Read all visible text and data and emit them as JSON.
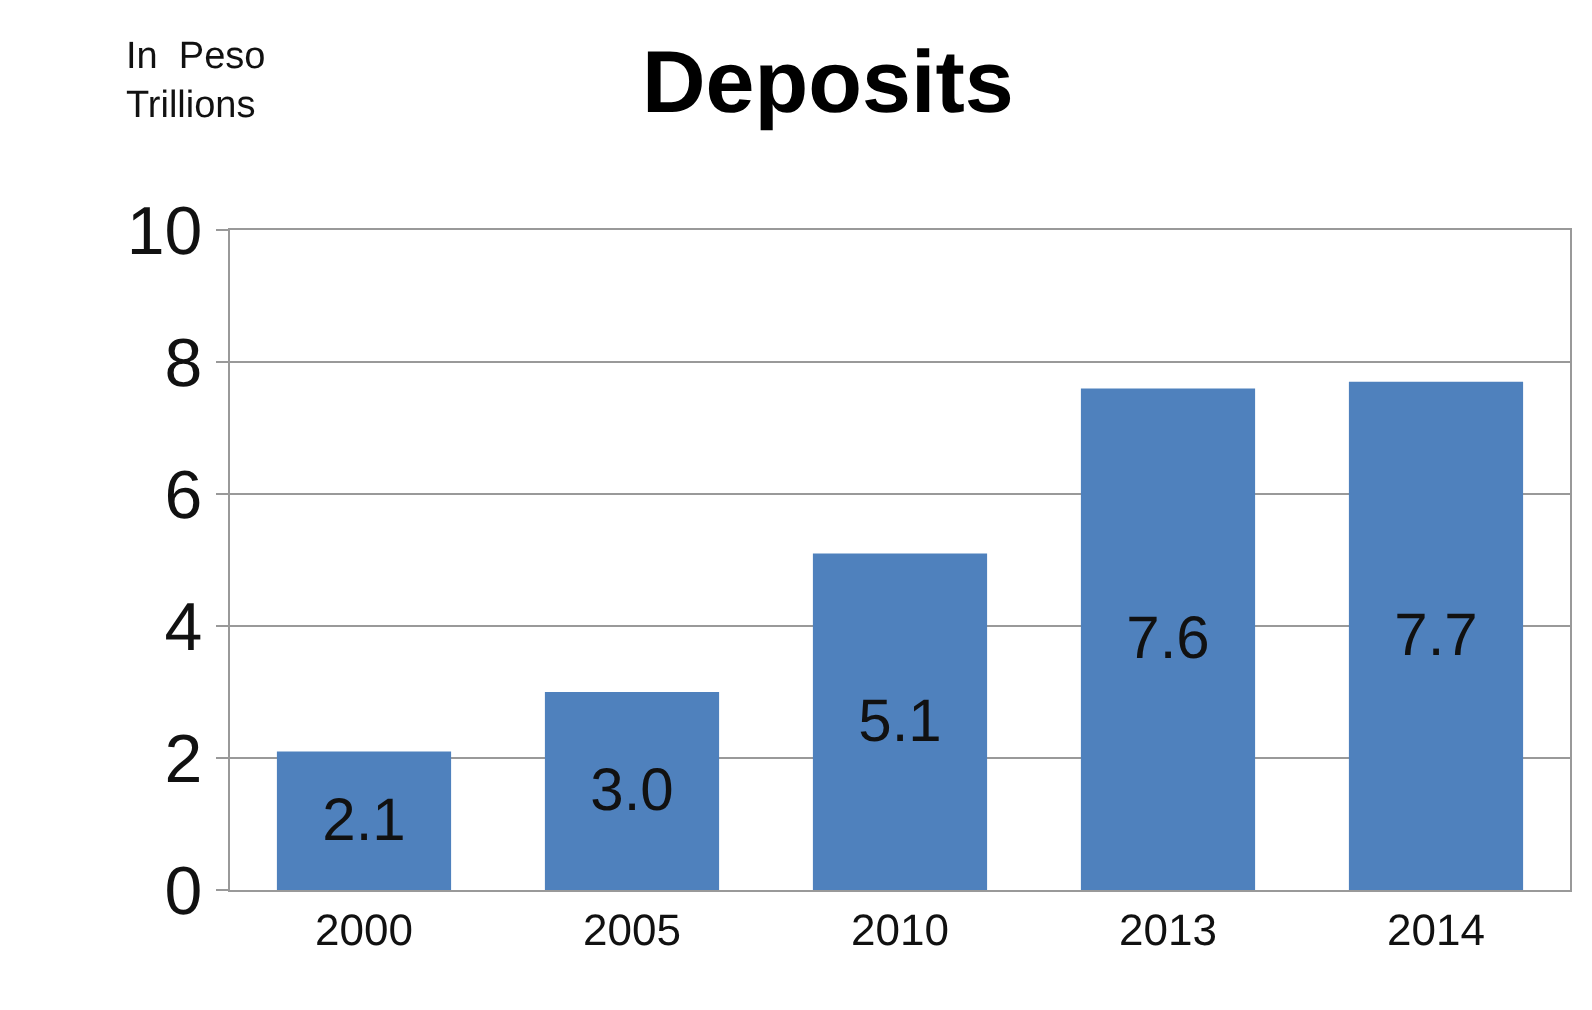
{
  "chart_data": {
    "type": "bar",
    "title": "Deposits",
    "ylabel": "In  Peso\nTrillions",
    "categories": [
      "2000",
      "2005",
      "2010",
      "2013",
      "2014"
    ],
    "values": [
      2.1,
      3.0,
      5.1,
      7.6,
      7.7
    ],
    "value_labels": [
      "2.1",
      "3.0",
      "5.1",
      "7.6",
      "7.7"
    ],
    "color": "#4f81bd",
    "ylim": [
      0,
      10
    ],
    "yticks": [
      0,
      2,
      4,
      6,
      8,
      10
    ],
    "grid": "y",
    "legend": false
  }
}
